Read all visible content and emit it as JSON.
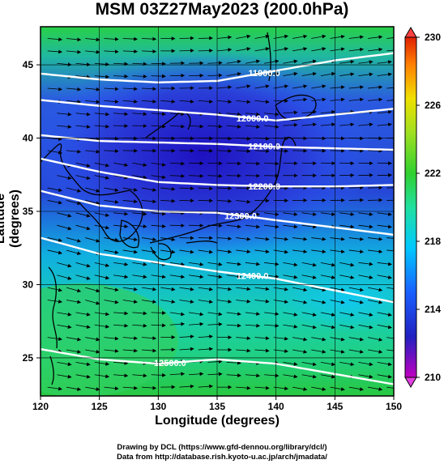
{
  "title": "MSM 03Z27May2023 (200.0hPa)",
  "xaxis": {
    "label": "Longitude (degrees)",
    "ticks": [
      120,
      125,
      130,
      135,
      140,
      145,
      150
    ],
    "range": [
      120,
      150
    ]
  },
  "yaxis": {
    "label": "Latitude  (degrees)",
    "ticks": [
      25,
      30,
      35,
      40,
      45
    ],
    "range": [
      22.4,
      47.6
    ]
  },
  "colorbar": {
    "ticks": [
      210,
      214,
      218,
      222,
      226,
      230
    ],
    "range": [
      210,
      230
    ],
    "colors": [
      "#c000c0",
      "#2020c0",
      "#1a60ff",
      "#00c8ff",
      "#20e0a0",
      "#30d030",
      "#a0e020",
      "#f0e000",
      "#ff8000",
      "#e02000"
    ]
  },
  "chart_data": {
    "type": "heatmap",
    "field": "temperature (shaded), geopotential height contours, wind vectors",
    "contours": [
      {
        "label": "11900.0",
        "points": [
          [
            120,
            44.4
          ],
          [
            125,
            44.0
          ],
          [
            130,
            43.8
          ],
          [
            135,
            43.9
          ],
          [
            140,
            44.6
          ],
          [
            145,
            45.3
          ],
          [
            150,
            45.8
          ]
        ]
      },
      {
        "label": "12000.0",
        "points": [
          [
            120,
            42.6
          ],
          [
            125,
            42.2
          ],
          [
            130,
            41.9
          ],
          [
            135,
            41.6
          ],
          [
            140,
            41.2
          ],
          [
            145,
            41.6
          ],
          [
            150,
            42.0
          ]
        ]
      },
      {
        "label": "12100.0",
        "points": [
          [
            120,
            40.2
          ],
          [
            125,
            39.8
          ],
          [
            130,
            39.7
          ],
          [
            135,
            39.6
          ],
          [
            140,
            39.4
          ],
          [
            145,
            39.3
          ],
          [
            150,
            39.2
          ]
        ]
      },
      {
        "label": "12200.0",
        "points": [
          [
            120,
            38.6
          ],
          [
            125,
            37.7
          ],
          [
            130,
            37.0
          ],
          [
            135,
            36.8
          ],
          [
            140,
            36.7
          ],
          [
            145,
            36.7
          ],
          [
            150,
            36.8
          ]
        ]
      },
      {
        "label": "12300.0",
        "points": [
          [
            120,
            36.4
          ],
          [
            125,
            35.4
          ],
          [
            130,
            35.0
          ],
          [
            135,
            34.9
          ],
          [
            140,
            34.4
          ],
          [
            145,
            33.9
          ],
          [
            150,
            33.4
          ]
        ]
      },
      {
        "label": "12400.0",
        "points": [
          [
            120,
            33.2
          ],
          [
            125,
            32.1
          ],
          [
            130,
            31.5
          ],
          [
            135,
            30.9
          ],
          [
            140,
            30.4
          ],
          [
            145,
            29.6
          ],
          [
            150,
            28.8
          ]
        ]
      },
      {
        "label": "12500.0",
        "points": [
          [
            120,
            25.6
          ],
          [
            125,
            24.9
          ],
          [
            130,
            24.6
          ],
          [
            135,
            24.9
          ],
          [
            140,
            24.6
          ],
          [
            145,
            23.9
          ],
          [
            150,
            23.2
          ]
        ]
      }
    ]
  },
  "credits": {
    "line1": "Drawing by DCL (https://www.gfd-dennou.org/library/dcl/)",
    "line2": "Data from http://database.rish.kyoto-u.ac.jp/arch/jmadata/"
  }
}
